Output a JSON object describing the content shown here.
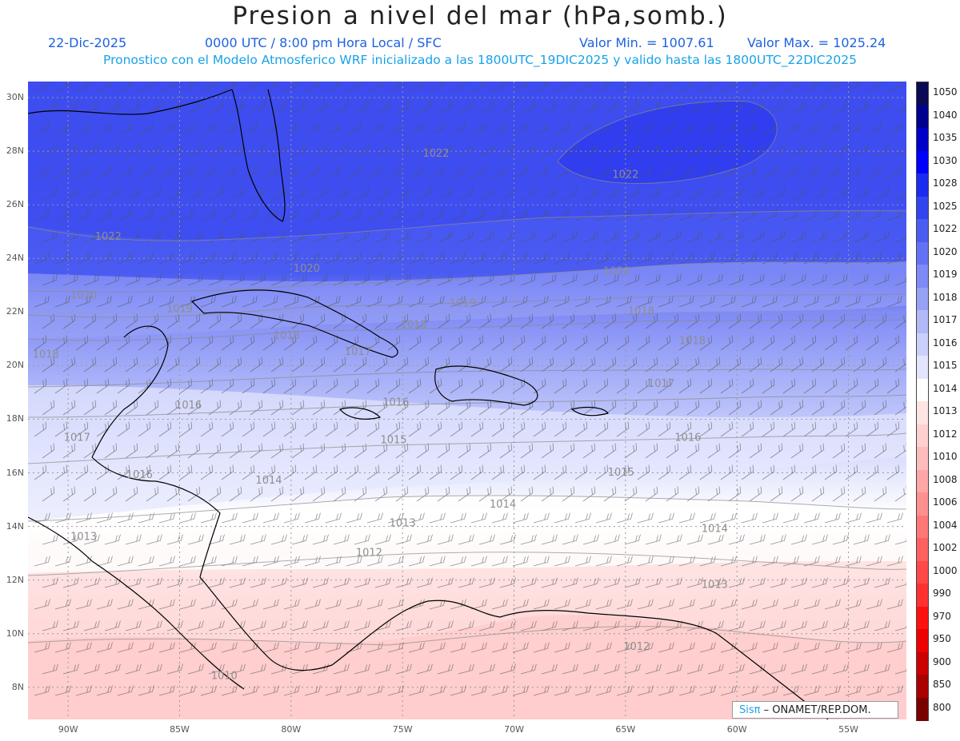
{
  "header": {
    "title": "Presion a nivel del mar (hPa,somb.)",
    "date": "22-Dic-2025",
    "time_info": "0000 UTC / 8:00 pm Hora Local / SFC",
    "min_value": "Valor Min. = 1007.61",
    "max_value": "Valor Max. = 1025.24",
    "model_info": "Pronostico con el Modelo Atmosferico WRF inicializado a las 1800UTC_19DIC2025 y valido hasta las  1800UTC_22DIC2025"
  },
  "axes": {
    "lat_ticks": [
      "30N",
      "28N",
      "26N",
      "24N",
      "22N",
      "20N",
      "18N",
      "16N",
      "14N",
      "12N",
      "10N",
      "8N"
    ],
    "lat_values": [
      30,
      28,
      26,
      24,
      22,
      20,
      18,
      16,
      14,
      12,
      10,
      8
    ],
    "lon_ticks": [
      "90W",
      "85W",
      "80W",
      "75W",
      "70W",
      "65W",
      "60W",
      "55W"
    ],
    "lon_values": [
      -90,
      -85,
      -80,
      -75,
      -70,
      -65,
      -60,
      -55
    ],
    "lon_range": [
      -91.8,
      -52.4
    ],
    "lat_range": [
      6.8,
      30.6
    ]
  },
  "colorbar": {
    "levels": [
      "1050",
      "1040",
      "1035",
      "1030",
      "1028",
      "1025",
      "1022",
      "1020",
      "1019",
      "1018",
      "1017",
      "1016",
      "1015",
      "1014",
      "1013",
      "1012",
      "1010",
      "1008",
      "1006",
      "1004",
      "1002",
      "1000",
      "990",
      "970",
      "950",
      "900",
      "850",
      "800"
    ],
    "colors": [
      "#0a0a55",
      "#00008f",
      "#0000c8",
      "#0000ff",
      "#1a2cf0",
      "#3345f0",
      "#4a5cf2",
      "#6372f4",
      "#7e8af5",
      "#97a2f7",
      "#b2b9f9",
      "#cbd0fb",
      "#e2e5fd",
      "#ffffff",
      "#ffe4e4",
      "#ffd0d0",
      "#ffbcbc",
      "#ffa6a6",
      "#ff9090",
      "#ff7878",
      "#ff6060",
      "#ff4848",
      "#ff3030",
      "#ff1010",
      "#ee0000",
      "#cc0000",
      "#aa0000",
      "#7a0000"
    ]
  },
  "contour_labels": [
    {
      "text": "1022",
      "lon": -73.5,
      "lat": 27.8
    },
    {
      "text": "1022",
      "lon": -65.0,
      "lat": 27.0
    },
    {
      "text": "1022",
      "lon": -88.2,
      "lat": 24.7
    },
    {
      "text": "1020",
      "lon": -79.3,
      "lat": 23.5
    },
    {
      "text": "1020",
      "lon": -65.4,
      "lat": 23.4
    },
    {
      "text": "1020",
      "lon": -89.3,
      "lat": 22.5
    },
    {
      "text": "1019",
      "lon": -85.0,
      "lat": 22.0
    },
    {
      "text": "1019",
      "lon": -72.3,
      "lat": 22.2
    },
    {
      "text": "1018",
      "lon": -64.3,
      "lat": 21.9
    },
    {
      "text": "1018",
      "lon": -74.5,
      "lat": 21.4
    },
    {
      "text": "1018",
      "lon": -80.2,
      "lat": 21.0
    },
    {
      "text": "1018",
      "lon": -62.0,
      "lat": 20.8
    },
    {
      "text": "1018",
      "lon": -91.0,
      "lat": 20.3
    },
    {
      "text": "1017",
      "lon": -77.0,
      "lat": 20.4
    },
    {
      "text": "1017",
      "lon": -63.4,
      "lat": 19.2
    },
    {
      "text": "1016",
      "lon": -84.6,
      "lat": 18.4
    },
    {
      "text": "1016",
      "lon": -75.3,
      "lat": 18.5
    },
    {
      "text": "1016",
      "lon": -62.2,
      "lat": 17.2
    },
    {
      "text": "1017",
      "lon": -89.6,
      "lat": 17.2
    },
    {
      "text": "1016",
      "lon": -86.8,
      "lat": 15.8
    },
    {
      "text": "1015",
      "lon": -75.4,
      "lat": 17.1
    },
    {
      "text": "1015",
      "lon": -65.2,
      "lat": 15.9
    },
    {
      "text": "1014",
      "lon": -81.0,
      "lat": 15.6
    },
    {
      "text": "1014",
      "lon": -70.5,
      "lat": 14.7
    },
    {
      "text": "1014",
      "lon": -61.0,
      "lat": 13.8
    },
    {
      "text": "1013",
      "lon": -75.0,
      "lat": 14.0
    },
    {
      "text": "1013",
      "lon": -61.0,
      "lat": 11.7
    },
    {
      "text": "1013",
      "lon": -89.3,
      "lat": 13.5
    },
    {
      "text": "1012",
      "lon": -76.5,
      "lat": 12.9
    },
    {
      "text": "1012",
      "lon": -64.5,
      "lat": 9.4
    },
    {
      "text": "1010",
      "lon": -83.0,
      "lat": 8.3
    }
  ],
  "watermark": {
    "brand": "Sisπ",
    "text": "– ONAMET/REP.DOM."
  }
}
